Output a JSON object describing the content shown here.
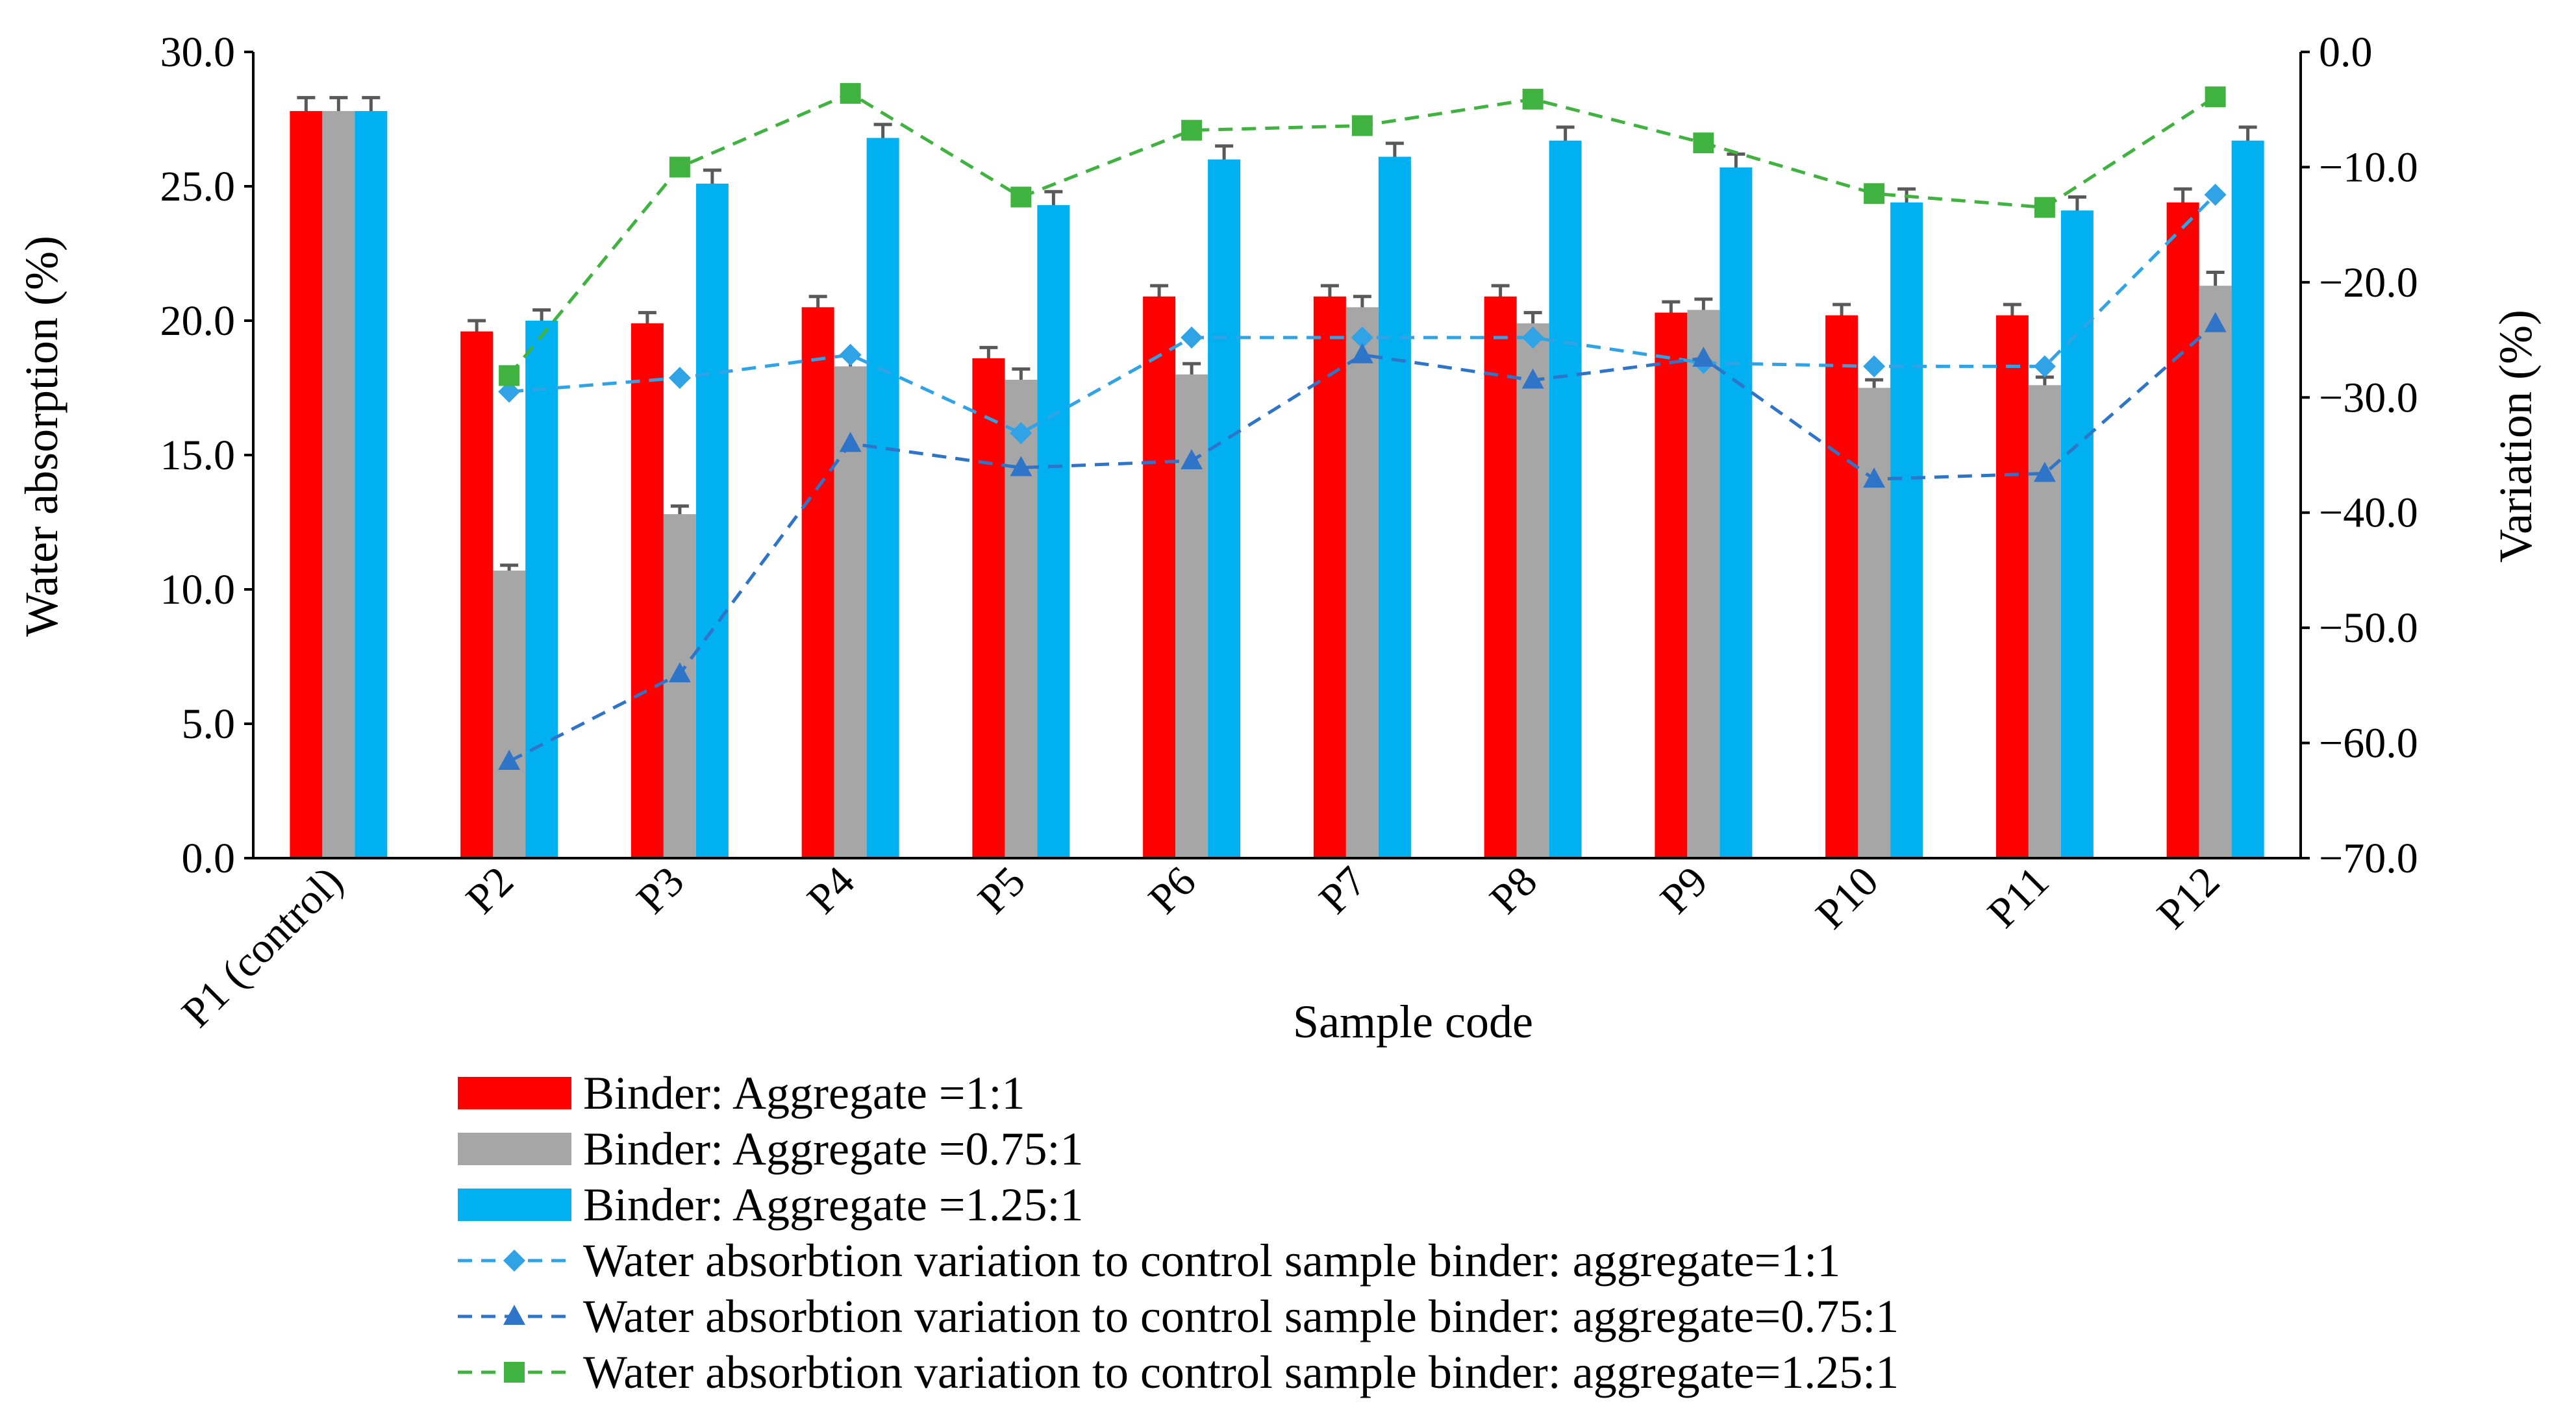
{
  "chart_data": {
    "type": "bar",
    "title": "",
    "xlabel": "Sample code",
    "ylabel": "Water absorption (%)",
    "y2label": "Variation (%)",
    "ylim": [
      0,
      30
    ],
    "y2lim": [
      -70,
      0
    ],
    "ytick_labels": [
      "0.0",
      "5.0",
      "10.0",
      "15.0",
      "20.0",
      "25.0",
      "30.0"
    ],
    "y2tick_labels": [
      "−70.0",
      "−60.0",
      "−50.0",
      "−40.0",
      "−30.0",
      "−20.0",
      "−10.0",
      "0.0"
    ],
    "categories": [
      "P1 (control)",
      "P2",
      "P3",
      "P4",
      "P5",
      "P6",
      "P7",
      "P8",
      "P9",
      "P10",
      "P11",
      "P12"
    ],
    "series": [
      {
        "name": "Binder:  Aggregate =1:1",
        "kind": "bar",
        "color": "#ff0000",
        "values": [
          27.8,
          19.6,
          19.9,
          20.5,
          18.6,
          20.9,
          20.9,
          20.9,
          20.3,
          20.2,
          20.2,
          24.4
        ],
        "errors": [
          0.5,
          0.4,
          0.4,
          0.4,
          0.4,
          0.4,
          0.4,
          0.4,
          0.4,
          0.4,
          0.4,
          0.5
        ]
      },
      {
        "name": "Binder: Aggregate =0.75:1",
        "kind": "bar",
        "color": "#a6a6a6",
        "values": [
          27.8,
          10.7,
          12.8,
          18.3,
          17.8,
          18.0,
          20.5,
          19.9,
          20.4,
          17.5,
          17.6,
          21.3
        ],
        "errors": [
          0.5,
          0.2,
          0.3,
          0.4,
          0.4,
          0.4,
          0.4,
          0.4,
          0.4,
          0.3,
          0.3,
          0.5
        ]
      },
      {
        "name": "Binder: Aggregate =1.25:1",
        "kind": "bar",
        "color": "#00b0f0",
        "values": [
          27.8,
          20.0,
          25.1,
          26.8,
          24.3,
          26.0,
          26.1,
          26.7,
          25.7,
          24.4,
          24.1,
          26.7
        ],
        "errors": [
          0.5,
          0.4,
          0.5,
          0.5,
          0.5,
          0.5,
          0.5,
          0.5,
          0.5,
          0.5,
          0.5,
          0.5
        ]
      },
      {
        "name": "Water absorbtion variation to control sample binder: aggregate=1:1",
        "kind": "line",
        "axis": "y2",
        "marker": "diamond",
        "color": "#2fa3e6",
        "values": [
          null,
          -29.5,
          -28.3,
          -26.3,
          -33.1,
          -24.8,
          -24.8,
          -24.8,
          -27.0,
          -27.3,
          -27.3,
          -12.4
        ]
      },
      {
        "name": "Water absorbtion variation to control sample binder: aggregate=0.75:1",
        "kind": "line",
        "axis": "y2",
        "marker": "triangle",
        "color": "#2e75c9",
        "values": [
          null,
          -61.6,
          -54.0,
          -34.0,
          -36.1,
          -35.5,
          -26.3,
          -28.5,
          -26.6,
          -37.1,
          -36.6,
          -23.6
        ]
      },
      {
        "name": "Water absorbtion variation to control sample binder: aggregate=1.25:1",
        "kind": "line",
        "axis": "y2",
        "marker": "square",
        "color": "#3fb23f",
        "values": [
          null,
          -28.1,
          -10.0,
          -3.6,
          -12.6,
          -6.8,
          -6.4,
          -4.1,
          -7.9,
          -12.3,
          -13.5,
          -3.9
        ]
      }
    ],
    "legend_position": "bottom"
  }
}
